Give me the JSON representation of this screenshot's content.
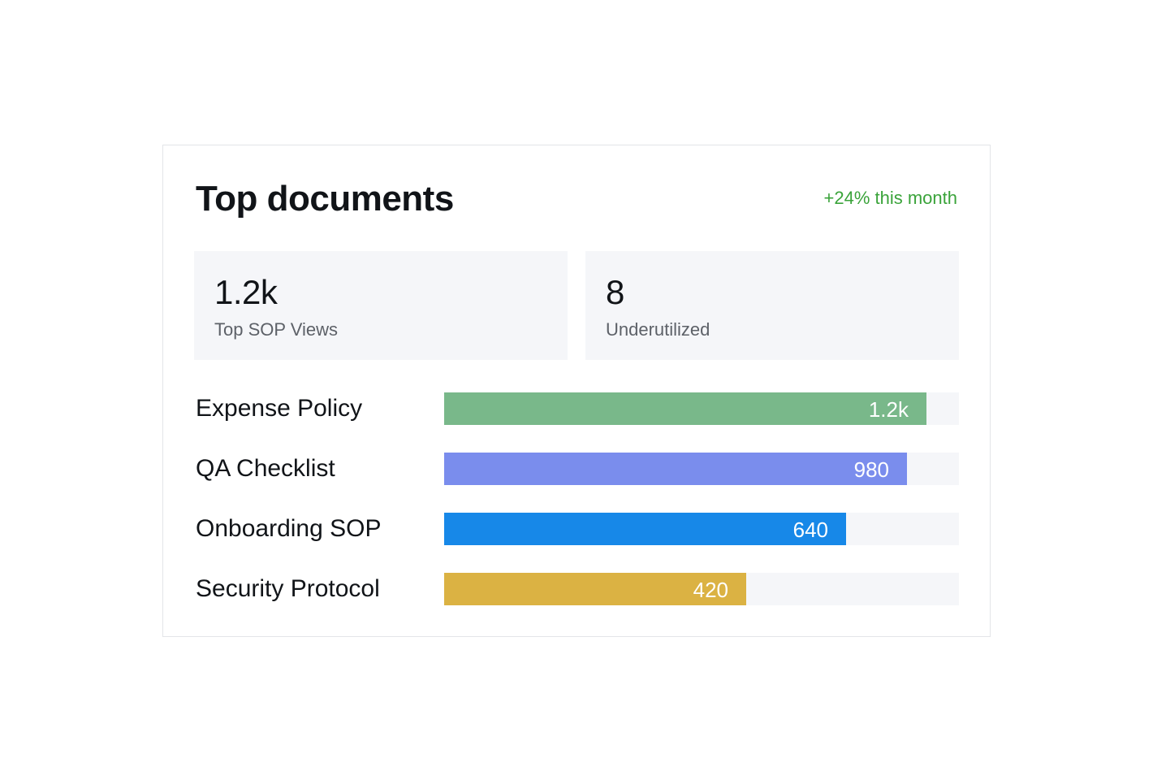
{
  "card": {
    "title": "Top documents",
    "trend": "+24% this month"
  },
  "stats": [
    {
      "value": "1.2k",
      "label": "Top SOP Views"
    },
    {
      "value": "8",
      "label": "Underutilized"
    }
  ],
  "colors": {
    "trend": "#3aa33a",
    "track": "#f5f6f9"
  },
  "chart_data": {
    "type": "bar",
    "orientation": "horizontal",
    "categories": [
      "Expense Policy",
      "QA Checklist",
      "Onboarding SOP",
      "Security Protocol"
    ],
    "values": [
      1200,
      980,
      640,
      420
    ],
    "value_labels": [
      "1.2k",
      "980",
      "640",
      "420"
    ],
    "fractions": [
      0.937,
      0.899,
      0.78,
      0.587
    ],
    "colors": [
      "#79b88a",
      "#7a8ded",
      "#1788e8",
      "#dbb243"
    ]
  }
}
